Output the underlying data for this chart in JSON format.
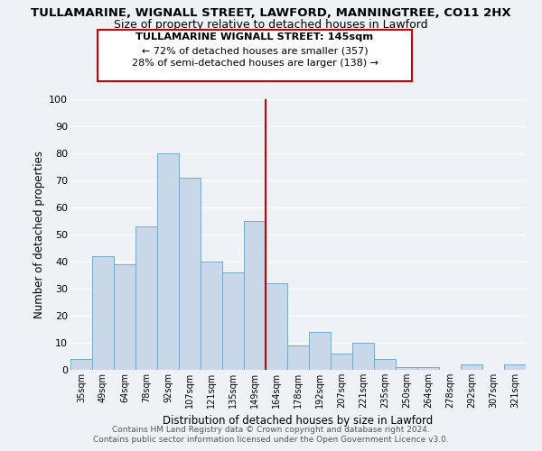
{
  "title": "TULLAMARINE, WIGNALL STREET, LAWFORD, MANNINGTREE, CO11 2HX",
  "subtitle": "Size of property relative to detached houses in Lawford",
  "xlabel": "Distribution of detached houses by size in Lawford",
  "ylabel": "Number of detached properties",
  "bar_labels": [
    "35sqm",
    "49sqm",
    "64sqm",
    "78sqm",
    "92sqm",
    "107sqm",
    "121sqm",
    "135sqm",
    "149sqm",
    "164sqm",
    "178sqm",
    "192sqm",
    "207sqm",
    "221sqm",
    "235sqm",
    "250sqm",
    "264sqm",
    "278sqm",
    "292sqm",
    "307sqm",
    "321sqm"
  ],
  "bar_values": [
    4,
    42,
    39,
    53,
    80,
    71,
    40,
    36,
    55,
    32,
    9,
    14,
    6,
    10,
    4,
    1,
    1,
    0,
    2,
    0,
    2
  ],
  "bar_color": "#c8d8e8",
  "bar_edgecolor": "#7aaac8",
  "vline_x": 8.5,
  "vline_color": "#cc0000",
  "ylim": [
    0,
    100
  ],
  "yticks": [
    0,
    10,
    20,
    30,
    40,
    50,
    60,
    70,
    80,
    90,
    100
  ],
  "annotation_title": "TULLAMARINE WIGNALL STREET: 145sqm",
  "annotation_line1": "← 72% of detached houses are smaller (357)",
  "annotation_line2": "28% of semi-detached houses are larger (138) →",
  "annotation_box_edgecolor": "#cc0000",
  "footer_line1": "Contains HM Land Registry data © Crown copyright and database right 2024.",
  "footer_line2": "Contains public sector information licensed under the Open Government Licence v3.0.",
  "background_color": "#eef2f7",
  "grid_color": "#ffffff",
  "title_fontsize": 9.5,
  "subtitle_fontsize": 9
}
